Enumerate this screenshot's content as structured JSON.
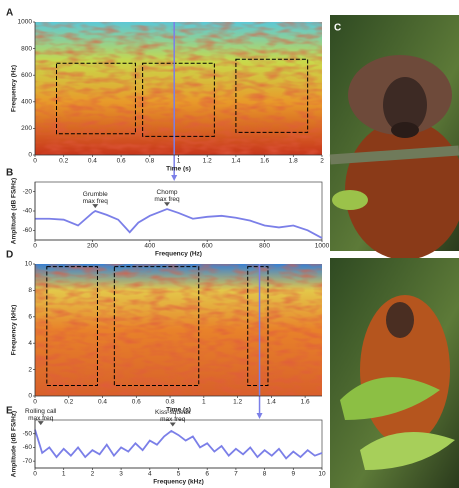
{
  "chart_data": [
    {
      "type": "spectrogram",
      "panel_label": "A",
      "x_label": "Time (s)",
      "y_label": "Frequency (Hz)",
      "xlim": [
        0,
        2
      ],
      "xticks": [
        0,
        0.2,
        0.4,
        0.6,
        0.8,
        1,
        1.2,
        1.4,
        1.6,
        1.8,
        2
      ],
      "ylim": [
        0,
        1000
      ],
      "yticks": [
        0,
        200,
        400,
        600,
        800,
        1000
      ],
      "boxes": [
        {
          "x": [
            0.15,
            0.7
          ],
          "y": [
            160,
            690
          ]
        },
        {
          "x": [
            0.75,
            1.25
          ],
          "y": [
            140,
            690
          ]
        },
        {
          "x": [
            1.4,
            1.9
          ],
          "y": [
            170,
            720
          ]
        }
      ],
      "cursor": 0.97
    },
    {
      "type": "line",
      "panel_label": "B",
      "x_label": "Frequency (Hz)",
      "y_label": "Amplitude (dB FS/Hz)",
      "xlim": [
        0,
        1000
      ],
      "xticks": [
        0,
        200,
        400,
        600,
        800,
        1000
      ],
      "ylim": [
        -70,
        -10
      ],
      "yticks": [
        -60,
        -40,
        -20
      ],
      "color": "#7b7fe8",
      "x": [
        0,
        50,
        100,
        150,
        200,
        210,
        250,
        290,
        330,
        360,
        400,
        460,
        500,
        550,
        600,
        650,
        700,
        750,
        800,
        850,
        900,
        950,
        1000
      ],
      "values": [
        -48,
        -48,
        -49,
        -55,
        -42,
        -40,
        -44,
        -49,
        -62,
        -52,
        -45,
        -38,
        -42,
        -48,
        -46,
        -45,
        -47,
        -50,
        -55,
        -57,
        -55,
        -60,
        -68
      ],
      "annotations": [
        {
          "x": 210,
          "y": -36,
          "lines": [
            "Grumble",
            "max freq"
          ]
        },
        {
          "x": 460,
          "y": -34,
          "lines": [
            "Chomp",
            "max freq"
          ]
        }
      ]
    },
    {
      "type": "image",
      "panel_label": "C"
    },
    {
      "type": "spectrogram",
      "panel_label": "D",
      "x_label": "Time (s)",
      "y_label": "Frequency (kHz)",
      "xlim": [
        0,
        1.7
      ],
      "xticks": [
        0,
        0.2,
        0.4,
        0.6,
        0.8,
        1,
        1.2,
        1.4,
        1.6
      ],
      "ylim": [
        0,
        10
      ],
      "yticks": [
        0,
        2,
        4,
        6,
        8,
        10
      ],
      "boxes": [
        {
          "x": [
            0.07,
            0.37
          ],
          "y": [
            0.8,
            9.8
          ]
        },
        {
          "x": [
            0.47,
            0.97
          ],
          "y": [
            0.8,
            9.8
          ]
        },
        {
          "x": [
            1.26,
            1.38
          ],
          "y": [
            0.8,
            9.8
          ]
        }
      ],
      "cursor": 1.33
    },
    {
      "type": "line",
      "panel_label": "E",
      "x_label": "Frequency (kHz)",
      "y_label": "Amplitude (dB FS/Hz)",
      "xlim": [
        0,
        10
      ],
      "xticks": [
        0,
        1,
        2,
        3,
        4,
        5,
        6,
        7,
        8,
        9,
        10
      ],
      "ylim": [
        -75,
        -40
      ],
      "yticks": [
        -70,
        -60,
        -50
      ],
      "color": "#7b7fe8",
      "x": [
        0,
        0.25,
        0.5,
        0.75,
        1,
        1.25,
        1.5,
        1.75,
        2,
        2.25,
        2.5,
        2.75,
        3,
        3.25,
        3.5,
        3.75,
        4,
        4.25,
        4.5,
        4.75,
        5,
        5.25,
        5.5,
        5.75,
        6,
        6.25,
        6.5,
        6.75,
        7,
        7.25,
        7.5,
        7.75,
        8,
        8.25,
        8.5,
        8.75,
        9,
        9.25,
        9.5,
        9.75,
        10
      ],
      "values": [
        -47,
        -64,
        -60,
        -67,
        -61,
        -66,
        -60,
        -67,
        -62,
        -65,
        -58,
        -66,
        -60,
        -63,
        -57,
        -62,
        -55,
        -58,
        -52,
        -48,
        -51,
        -55,
        -52,
        -60,
        -57,
        -63,
        -59,
        -66,
        -61,
        -65,
        -60,
        -67,
        -62,
        -66,
        -61,
        -68,
        -63,
        -67,
        -62,
        -66,
        -64
      ],
      "annotations": [
        {
          "x": 0.2,
          "y": -43,
          "lines": [
            "Rolling call",
            "max freq"
          ]
        },
        {
          "x": 4.8,
          "y": -44,
          "lines": [
            "Kiss-squeak",
            "max freq"
          ]
        }
      ]
    },
    {
      "type": "image"
    }
  ]
}
